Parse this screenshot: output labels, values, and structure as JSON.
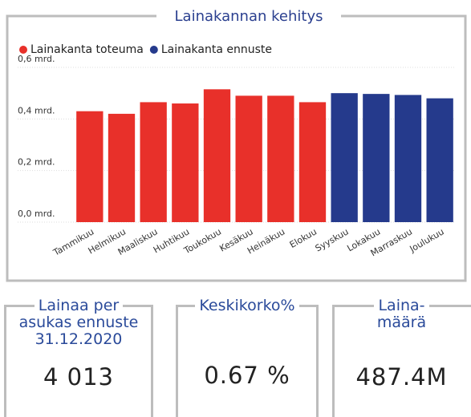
{
  "chart_data": {
    "type": "bar",
    "title": "Lainakannan kehitys",
    "categories": [
      "Tammikuu",
      "Helmikuu",
      "Maaliskuu",
      "Huhtikuu",
      "Toukokuu",
      "Kesäkuu",
      "Heinäkuu",
      "Elokuu",
      "Syyskuu",
      "Lokakuu",
      "Marraskuu",
      "Joulukuu"
    ],
    "series": [
      {
        "name": "Lainakanta toteuma",
        "color": "#e8302a",
        "values": [
          0.43,
          0.42,
          0.465,
          0.46,
          0.515,
          0.49,
          0.49,
          0.465,
          null,
          null,
          null,
          null
        ]
      },
      {
        "name": "Lainakanta ennuste",
        "color": "#253a8c",
        "values": [
          null,
          null,
          null,
          null,
          null,
          null,
          null,
          null,
          0.5,
          0.497,
          0.493,
          0.48
        ]
      }
    ],
    "ylim": [
      0,
      0.6
    ],
    "yticks": [
      {
        "value": 0,
        "label": "0,0 mrd."
      },
      {
        "value": 0.2,
        "label": "0,2 mrd."
      },
      {
        "value": 0.4,
        "label": "0,4 mrd."
      },
      {
        "value": 0.6,
        "label": "0,6 mrd."
      }
    ],
    "grid": true,
    "legend": "top-left"
  },
  "cards": [
    {
      "title": [
        "Lainaa per",
        "asukas ennuste",
        "31.12.2020"
      ],
      "value": "4 013"
    },
    {
      "title": [
        "Keskikorko%"
      ],
      "value": "0.67 %"
    },
    {
      "title": [
        "Laina-",
        "määrä"
      ],
      "value": "487.4M"
    }
  ]
}
